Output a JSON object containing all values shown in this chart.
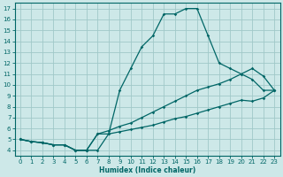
{
  "xlabel": "Humidex (Indice chaleur)",
  "bg_color": "#cde8e8",
  "grid_color": "#a0c8c8",
  "line_color": "#006666",
  "xlim": [
    -0.5,
    23.5
  ],
  "ylim": [
    3.5,
    17.5
  ],
  "xticks": [
    0,
    1,
    2,
    3,
    4,
    5,
    6,
    7,
    8,
    9,
    10,
    11,
    12,
    13,
    14,
    15,
    16,
    17,
    18,
    19,
    20,
    21,
    22,
    23
  ],
  "yticks": [
    4,
    5,
    6,
    7,
    8,
    9,
    10,
    11,
    12,
    13,
    14,
    15,
    16,
    17
  ],
  "line1_x": [
    0,
    1,
    2,
    3,
    4,
    5,
    6,
    7,
    8,
    9,
    10,
    11,
    12,
    13,
    14,
    15,
    16,
    17,
    18,
    19,
    20,
    21,
    22,
    23
  ],
  "line1_y": [
    5.0,
    4.8,
    4.7,
    4.5,
    4.5,
    4.0,
    4.0,
    4.0,
    5.5,
    9.5,
    11.5,
    13.5,
    14.5,
    16.5,
    16.5,
    17.0,
    17.0,
    14.5,
    12.0,
    11.5,
    11.0,
    10.5,
    9.5,
    9.5
  ],
  "line2_x": [
    0,
    1,
    2,
    3,
    4,
    5,
    6,
    7,
    8,
    9,
    10,
    11,
    12,
    13,
    14,
    15,
    16,
    17,
    18,
    19,
    20,
    21,
    22,
    23
  ],
  "line2_y": [
    5.0,
    4.8,
    4.7,
    4.5,
    4.5,
    4.0,
    4.0,
    5.5,
    5.8,
    6.2,
    6.5,
    7.0,
    7.5,
    8.0,
    8.5,
    9.0,
    9.5,
    9.8,
    10.1,
    10.5,
    11.0,
    11.5,
    10.8,
    9.5
  ],
  "line3_x": [
    0,
    1,
    2,
    3,
    4,
    5,
    6,
    7,
    8,
    9,
    10,
    11,
    12,
    13,
    14,
    15,
    16,
    17,
    18,
    19,
    20,
    21,
    22,
    23
  ],
  "line3_y": [
    5.0,
    4.8,
    4.7,
    4.5,
    4.5,
    4.0,
    4.0,
    5.5,
    5.5,
    5.7,
    5.9,
    6.1,
    6.3,
    6.6,
    6.9,
    7.1,
    7.4,
    7.7,
    8.0,
    8.3,
    8.6,
    8.5,
    8.8,
    9.5
  ]
}
